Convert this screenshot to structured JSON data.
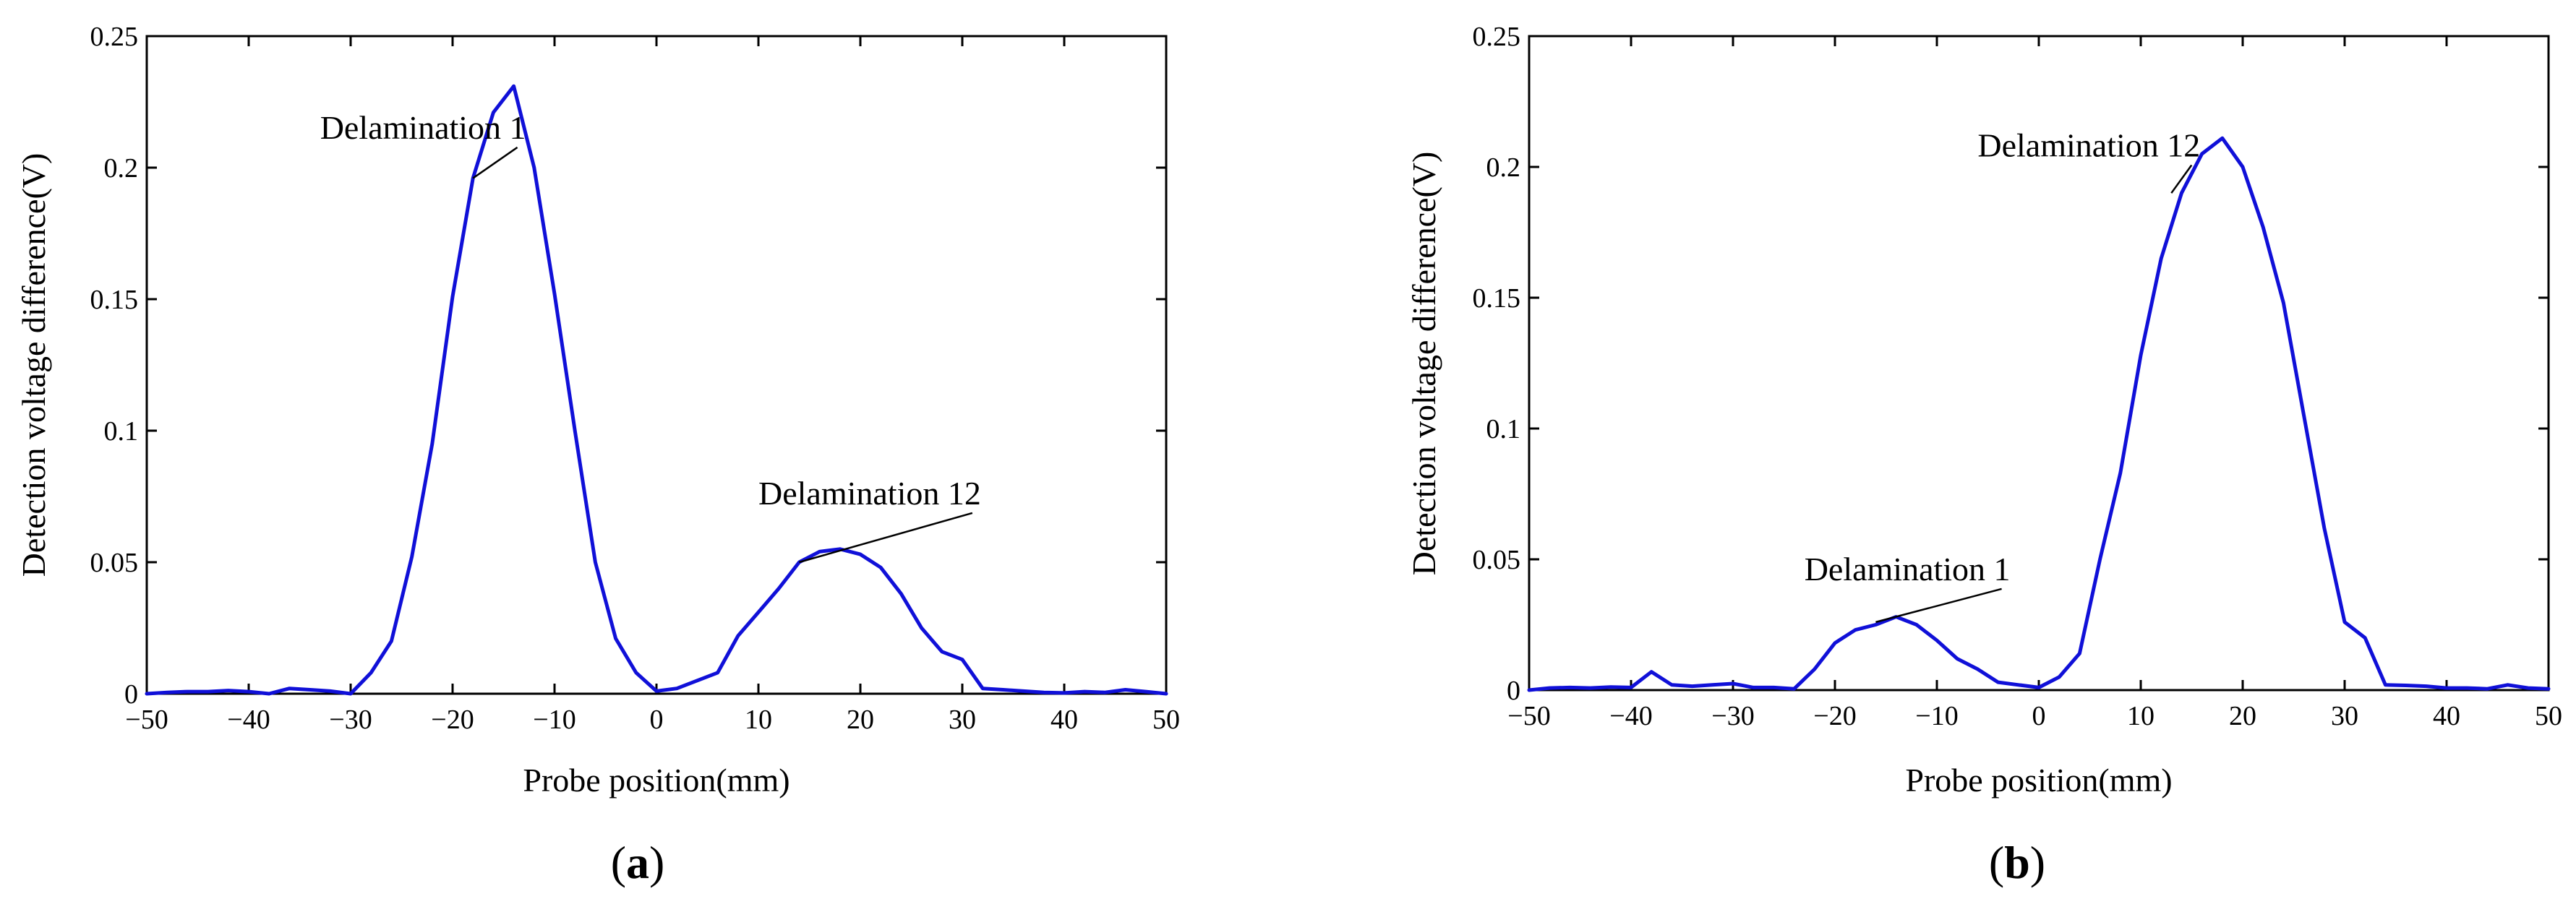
{
  "chart_data": [
    {
      "type": "line",
      "panel_label": {
        "open": "(",
        "letter": "a",
        "close": ")"
      },
      "title": "",
      "xlabel": "Probe position(mm)",
      "ylabel": "Detection voltage difference(V)",
      "xlim": [
        -50,
        50
      ],
      "ylim": [
        0,
        0.25
      ],
      "xticks": [
        -50,
        -40,
        -30,
        -20,
        -10,
        0,
        10,
        20,
        30,
        40,
        50
      ],
      "xtick_labels": [
        "−50",
        "−40",
        "−30",
        "−20",
        "−10",
        "0",
        "10",
        "20",
        "30",
        "40",
        "50"
      ],
      "yticks": [
        0,
        0.05,
        0.1,
        0.15,
        0.2,
        0.25
      ],
      "ytick_labels": [
        "0",
        "0.05",
        "0.1",
        "0.15",
        "0.2",
        "0.25"
      ],
      "grid": false,
      "series": [
        {
          "name": "Detection voltage difference",
          "color": "#1010d8",
          "x": [
            -50,
            -48,
            -46,
            -44,
            -42,
            -40,
            -38,
            -36,
            -34,
            -32,
            -30,
            -28,
            -26,
            -24,
            -22,
            -20,
            -18,
            -16,
            -14,
            -12,
            -10,
            -8,
            -6,
            -4,
            -2,
            0,
            2,
            4,
            6,
            8,
            10,
            12,
            14,
            16,
            18,
            20,
            22,
            24,
            26,
            28,
            30,
            32,
            34,
            36,
            38,
            40,
            42,
            44,
            46,
            48,
            50
          ],
          "y": [
            0,
            0.0005,
            0.0008,
            0.0008,
            0.0012,
            0.0008,
            0,
            0.002,
            0.0015,
            0.001,
            0,
            0.008,
            0.02,
            0.052,
            0.095,
            0.151,
            0.196,
            0.221,
            0.231,
            0.2,
            0.152,
            0.1,
            0.05,
            0.021,
            0.008,
            0.001,
            0.002,
            0.005,
            0.008,
            0.022,
            0.031,
            0.04,
            0.05,
            0.054,
            0.055,
            0.053,
            0.048,
            0.038,
            0.025,
            0.016,
            0.013,
            0.002,
            0.0015,
            0.001,
            0.0005,
            0.0003,
            0.0008,
            0.0005,
            0.0015,
            0.0008,
            0
          ]
        }
      ],
      "annotations": [
        {
          "text": "Delamination 1",
          "x": -33,
          "y": 0.211,
          "point_x": -18,
          "point_y": 0.196
        },
        {
          "text": "Delamination 12",
          "x": 10,
          "y": 0.072,
          "point_x": 14,
          "point_y": 0.05
        }
      ]
    },
    {
      "type": "line",
      "panel_label": {
        "open": "(",
        "letter": "b",
        "close": ")"
      },
      "title": "",
      "xlabel": "Probe position(mm)",
      "ylabel": "Detection voltage difference(V)",
      "xlim": [
        -50,
        50
      ],
      "ylim": [
        0,
        0.25
      ],
      "xticks": [
        -50,
        -40,
        -30,
        -20,
        -10,
        0,
        10,
        20,
        30,
        40,
        50
      ],
      "xtick_labels": [
        "−50",
        "−40",
        "−30",
        "−20",
        "−10",
        "0",
        "10",
        "20",
        "30",
        "40",
        "50"
      ],
      "yticks": [
        0,
        0.05,
        0.1,
        0.15,
        0.2,
        0.25
      ],
      "ytick_labels": [
        "0",
        "0.05",
        "0.1",
        "0.15",
        "0.2",
        "0.25"
      ],
      "grid": false,
      "series": [
        {
          "name": "Detection voltage difference",
          "color": "#1010d8",
          "x": [
            -50,
            -48,
            -46,
            -44,
            -42,
            -40,
            -38,
            -36,
            -34,
            -32,
            -30,
            -28,
            -26,
            -24,
            -22,
            -20,
            -18,
            -16,
            -14,
            -12,
            -10,
            -8,
            -6,
            -4,
            -2,
            0,
            2,
            4,
            6,
            8,
            10,
            12,
            14,
            16,
            18,
            20,
            22,
            24,
            26,
            28,
            30,
            32,
            34,
            36,
            38,
            40,
            42,
            44,
            46,
            48,
            50
          ],
          "y": [
            0,
            0.0008,
            0.001,
            0.0008,
            0.0012,
            0.001,
            0.007,
            0.002,
            0.0015,
            0.002,
            0.0025,
            0.001,
            0.001,
            0.0005,
            0.008,
            0.018,
            0.023,
            0.025,
            0.028,
            0.025,
            0.019,
            0.012,
            0.008,
            0.003,
            0.002,
            0.001,
            0.005,
            0.014,
            0.05,
            0.083,
            0.128,
            0.165,
            0.19,
            0.205,
            0.211,
            0.2,
            0.177,
            0.148,
            0.105,
            0.062,
            0.026,
            0.02,
            0.002,
            0.0018,
            0.0015,
            0.0008,
            0.0008,
            0.0005,
            0.002,
            0.0008,
            0.0005
          ]
        }
      ],
      "annotations": [
        {
          "text": "Delamination 1",
          "x": -23,
          "y": 0.042,
          "point_x": -16,
          "point_y": 0.026
        },
        {
          "text": "Delamination 12",
          "x": -6,
          "y": 0.204,
          "point_x": 13,
          "point_y": 0.19
        }
      ]
    }
  ]
}
